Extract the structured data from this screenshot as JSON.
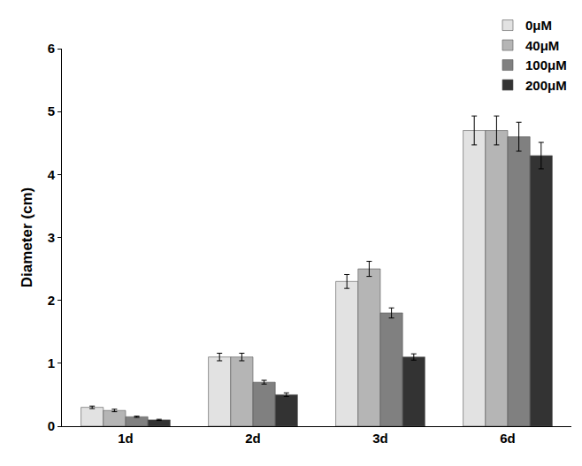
{
  "chart_data": {
    "type": "bar",
    "y_label": "Diameter (cm)",
    "categories": [
      "1d",
      "2d",
      "3d",
      "6d"
    ],
    "series": [
      {
        "name": "0μM",
        "color": "#e2e2e2",
        "values": [
          0.3,
          1.1,
          2.3,
          4.7
        ],
        "error": [
          0.02,
          0.06,
          0.11,
          0.23
        ]
      },
      {
        "name": "40μM",
        "color": "#b5b5b5",
        "values": [
          0.25,
          1.1,
          2.5,
          4.7
        ],
        "error": [
          0.02,
          0.06,
          0.12,
          0.23
        ]
      },
      {
        "name": "100μM",
        "color": "#808080",
        "values": [
          0.15,
          0.7,
          1.8,
          4.6
        ],
        "error": [
          0.01,
          0.03,
          0.08,
          0.23
        ]
      },
      {
        "name": "200μM",
        "color": "#333333",
        "values": [
          0.1,
          0.5,
          1.1,
          4.3
        ],
        "error": [
          0.01,
          0.03,
          0.05,
          0.21
        ]
      }
    ],
    "ylim": [
      0,
      6
    ],
    "yticks": [
      0,
      1,
      2,
      3,
      4,
      5,
      6
    ],
    "grid": false,
    "legend": "top right"
  }
}
